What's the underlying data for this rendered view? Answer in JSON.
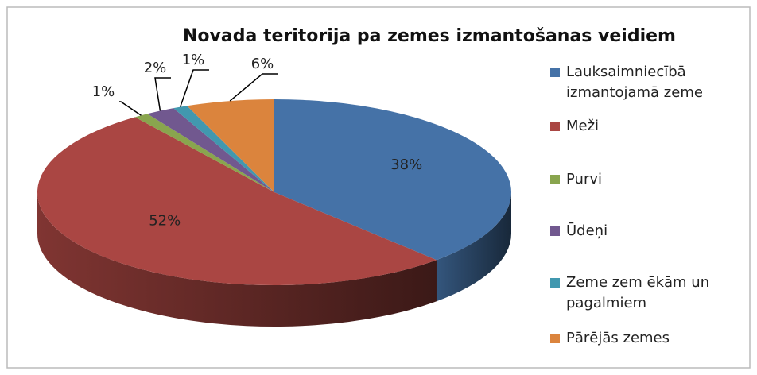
{
  "chart_data": {
    "type": "pie3d",
    "title": "Novada teritorija pa zemes izmantošanas  veidiem",
    "categories": [
      "Lauksaimniecībā izmantojamā zeme",
      "Meži",
      "Purvi",
      "Ūdeņi",
      "Zeme zem ēkām un pagalmiem",
      "Pārējās zemes"
    ],
    "values": [
      38,
      52,
      1,
      2,
      1,
      6
    ],
    "value_labels": [
      "38%",
      "52%",
      "1%",
      "2%",
      "1%",
      "6%"
    ],
    "colors": [
      "#4572a7",
      "#aa4643",
      "#89a54e",
      "#71588f",
      "#4198af",
      "#db843d"
    ],
    "legend": "right"
  }
}
